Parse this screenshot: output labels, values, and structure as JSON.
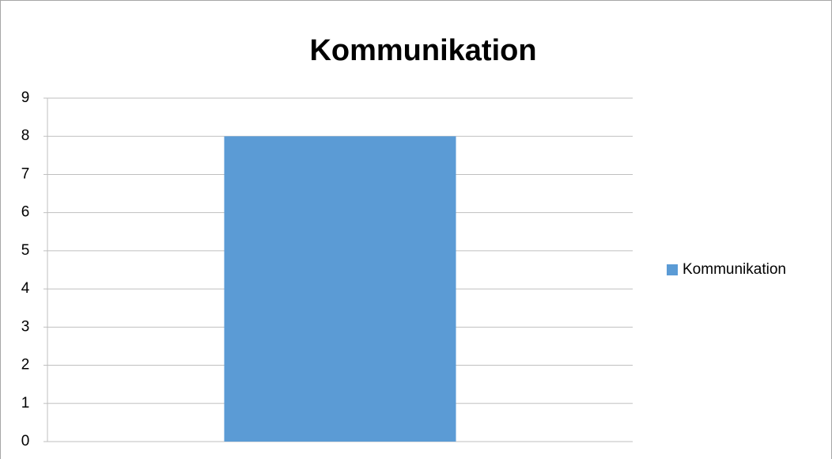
{
  "chart_data": {
    "type": "bar",
    "title": "Kommunikation",
    "categories": [
      null
    ],
    "series": [
      {
        "name": "Kommunikation",
        "color": "#5b9bd5",
        "values": [
          8
        ]
      }
    ],
    "ylim": [
      0,
      9
    ],
    "yticks": [
      0,
      1,
      2,
      3,
      4,
      5,
      6,
      7,
      8,
      9
    ],
    "grid": true,
    "legend": "right"
  }
}
